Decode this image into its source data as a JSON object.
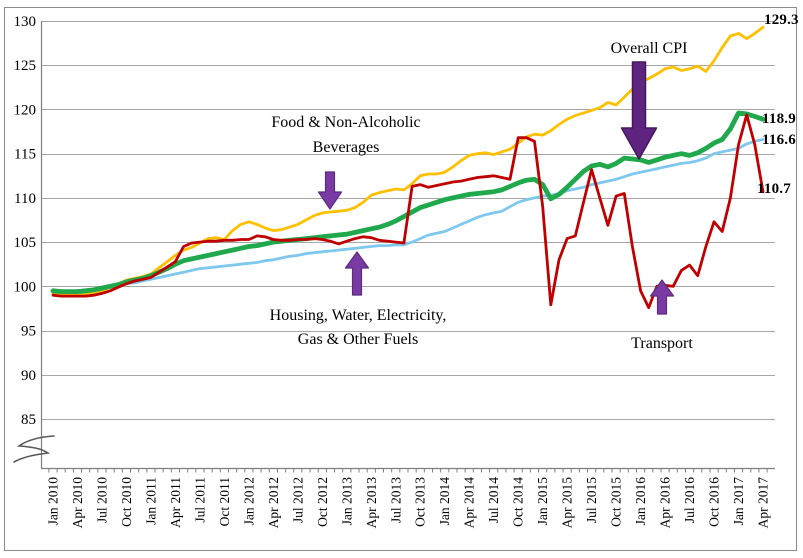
{
  "chart_data": {
    "type": "line",
    "title": "",
    "x_start": "Jan 2010",
    "x_end": "Apr 2017",
    "x_frequency": "monthly",
    "x_tick_labels": [
      "Jan 2010",
      "Apr 2010",
      "Jul 2010",
      "Oct 2010",
      "Jan 2011",
      "Apr 2011",
      "Jul 2011",
      "Oct 2011",
      "Jan 2012",
      "Apr 2012",
      "Jul 2012",
      "Oct 2012",
      "Jan 2013",
      "Apr 2013",
      "Jul 2013",
      "Oct 2013",
      "Jan 2014",
      "Apr 2014",
      "Jul 2014",
      "Oct 2014",
      "Jan 2015",
      "Apr 2015",
      "Jul 2015",
      "Oct 2015",
      "Jan 2016",
      "Apr 2016",
      "Jul 2016",
      "Oct 2016",
      "Jan 2017",
      "Apr 2017"
    ],
    "y_ticks": [
      85,
      90,
      95,
      100,
      105,
      110,
      115,
      120,
      125,
      130
    ],
    "ylim": [
      85,
      130
    ],
    "axis_break": true,
    "grid": "horizontal",
    "legend": "annotated-arrows",
    "draw_order": [
      1,
      2,
      0,
      3
    ],
    "series": [
      {
        "name": "Overall CPI",
        "color": "#1FA84C",
        "stroke_width": 4.8,
        "end_label": "118.9",
        "values": [
          99.5,
          99.4,
          99.4,
          99.4,
          99.5,
          99.6,
          99.8,
          100.0,
          100.2,
          100.5,
          100.7,
          100.9,
          101.2,
          101.6,
          102.0,
          102.5,
          102.9,
          103.1,
          103.3,
          103.5,
          103.7,
          103.9,
          104.1,
          104.3,
          104.5,
          104.6,
          104.8,
          105.0,
          105.1,
          105.2,
          105.3,
          105.4,
          105.5,
          105.6,
          105.7,
          105.8,
          105.9,
          106.1,
          106.3,
          106.5,
          106.7,
          107.0,
          107.4,
          107.9,
          108.4,
          108.9,
          109.2,
          109.5,
          109.8,
          110.0,
          110.2,
          110.4,
          110.5,
          110.6,
          110.7,
          110.9,
          111.3,
          111.7,
          112.0,
          112.1,
          111.5,
          109.9,
          110.4,
          111.2,
          112.1,
          113.0,
          113.6,
          113.8,
          113.5,
          113.9,
          114.5,
          114.4,
          114.3,
          114.0,
          114.3,
          114.6,
          114.8,
          115.0,
          114.8,
          115.1,
          115.6,
          116.2,
          116.6,
          117.8,
          119.6,
          119.5,
          119.2,
          118.9
        ]
      },
      {
        "name": "Food & Non-Alcoholic Beverages",
        "color": "#FFC000",
        "stroke_width": 2.8,
        "end_label": "129.3",
        "values": [
          99.2,
          99.1,
          99.0,
          99.0,
          99.1,
          99.2,
          99.5,
          99.9,
          100.3,
          100.7,
          100.9,
          101.1,
          101.4,
          102.1,
          102.8,
          103.5,
          104.1,
          104.4,
          104.9,
          105.4,
          105.5,
          105.3,
          106.3,
          107.0,
          107.3,
          107.0,
          106.6,
          106.3,
          106.4,
          106.7,
          107.0,
          107.5,
          108.0,
          108.3,
          108.4,
          108.5,
          108.6,
          108.9,
          109.5,
          110.3,
          110.6,
          110.8,
          111.0,
          110.9,
          111.6,
          112.5,
          112.7,
          112.7,
          112.9,
          113.5,
          114.2,
          114.8,
          115.0,
          115.1,
          114.9,
          115.2,
          115.5,
          116.2,
          116.9,
          117.2,
          117.1,
          117.6,
          118.3,
          118.9,
          119.3,
          119.6,
          119.9,
          120.2,
          120.8,
          120.5,
          121.4,
          122.3,
          123.0,
          123.5,
          124.0,
          124.6,
          124.8,
          124.4,
          124.6,
          124.9,
          124.3,
          125.5,
          127.0,
          128.3,
          128.6,
          128.0,
          128.6,
          129.3
        ]
      },
      {
        "name": "Housing, Water, Electricity, Gas & Other Fuels",
        "color": "#7EC8EE",
        "stroke_width": 2.8,
        "end_label": "116.6",
        "values": [
          99.4,
          99.4,
          99.4,
          99.5,
          99.6,
          99.7,
          99.9,
          100.0,
          100.1,
          100.3,
          100.4,
          100.6,
          100.8,
          101.0,
          101.2,
          101.4,
          101.6,
          101.8,
          102.0,
          102.1,
          102.2,
          102.3,
          102.4,
          102.5,
          102.6,
          102.7,
          102.9,
          103.0,
          103.2,
          103.4,
          103.5,
          103.7,
          103.8,
          103.9,
          104.0,
          104.1,
          104.2,
          104.3,
          104.4,
          104.5,
          104.6,
          104.6,
          104.7,
          104.7,
          105.0,
          105.4,
          105.8,
          106.0,
          106.2,
          106.6,
          107.0,
          107.4,
          107.8,
          108.1,
          108.3,
          108.5,
          109.0,
          109.5,
          109.8,
          110.0,
          110.2,
          110.3,
          110.5,
          110.8,
          111.0,
          111.2,
          111.5,
          111.7,
          111.9,
          112.1,
          112.4,
          112.7,
          112.9,
          113.1,
          113.3,
          113.5,
          113.7,
          113.9,
          114.0,
          114.2,
          114.5,
          115.0,
          115.2,
          115.4,
          115.6,
          116.1,
          116.4,
          116.6
        ]
      },
      {
        "name": "Transport",
        "color": "#C00000",
        "stroke_width": 2.8,
        "end_label": "110.7",
        "values": [
          99.0,
          98.9,
          98.9,
          98.9,
          98.9,
          99.0,
          99.2,
          99.5,
          99.9,
          100.3,
          100.6,
          100.8,
          101.0,
          101.6,
          102.2,
          102.8,
          104.5,
          104.9,
          105.0,
          105.1,
          105.1,
          105.2,
          105.2,
          105.3,
          105.3,
          105.7,
          105.6,
          105.3,
          105.2,
          105.2,
          105.3,
          105.3,
          105.4,
          105.3,
          105.1,
          104.8,
          105.1,
          105.4,
          105.6,
          105.5,
          105.2,
          105.1,
          105.0,
          104.9,
          111.3,
          111.5,
          111.2,
          111.4,
          111.6,
          111.8,
          111.9,
          112.1,
          112.3,
          112.4,
          112.5,
          112.3,
          112.1,
          116.8,
          116.8,
          116.4,
          109.0,
          97.9,
          103.0,
          105.4,
          105.7,
          109.5,
          113.2,
          110.0,
          106.9,
          110.2,
          110.5,
          104.5,
          99.5,
          97.6,
          100.0,
          100.1,
          100.0,
          101.8,
          102.4,
          101.2,
          104.5,
          107.3,
          106.2,
          110.0,
          116.0,
          119.4,
          116.0,
          110.7
        ]
      }
    ],
    "annotations": [
      {
        "id": "overall-cpi",
        "text": "Overall CPI",
        "arrow": "down",
        "arrow_color": "#5F2480"
      },
      {
        "id": "food",
        "text": "Food & Non-Alcoholic Beverages",
        "arrow": "down",
        "arrow_color": "#7A3AA4"
      },
      {
        "id": "housing",
        "text": "Housing, Water, Electricity, Gas & Other Fuels",
        "arrow": "up",
        "arrow_color": "#7A3AA4"
      },
      {
        "id": "transport",
        "text": "Transport",
        "arrow": "up",
        "arrow_color": "#7A3AA4"
      }
    ]
  }
}
